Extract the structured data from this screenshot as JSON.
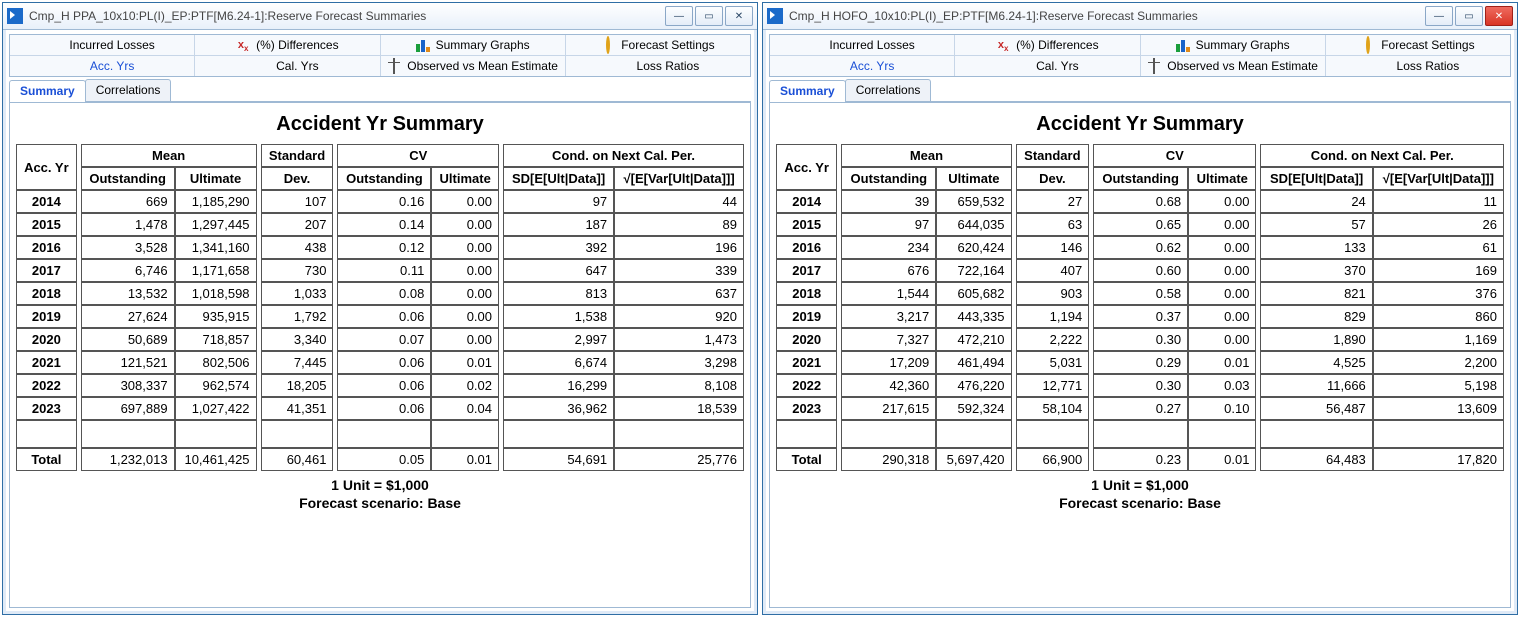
{
  "windows": [
    {
      "title": "Cmp_H PPA_10x10:PL(I)_EP:PTF[M6.24-1]:Reserve Forecast Summaries",
      "close_red": false,
      "summary_title": "Accident Yr Summary",
      "group_headers": {
        "acc": "Acc. Yr",
        "mean": "Mean",
        "std": "Standard",
        "cv": "CV",
        "cond": "Cond. on Next Cal. Per."
      },
      "sub_headers": {
        "out": "Outstanding",
        "ult": "Ultimate",
        "dev": "Dev.",
        "sd": "SD[E[Ult|Data]]",
        "sqrt": "√[E[Var[Ult|Data]]]"
      },
      "rows": [
        {
          "yr": "2014",
          "out": "669",
          "ult": "1,185,290",
          "dev": "107",
          "cvo": "0.16",
          "cvu": "0.00",
          "sd": "97",
          "sq": "44"
        },
        {
          "yr": "2015",
          "out": "1,478",
          "ult": "1,297,445",
          "dev": "207",
          "cvo": "0.14",
          "cvu": "0.00",
          "sd": "187",
          "sq": "89"
        },
        {
          "yr": "2016",
          "out": "3,528",
          "ult": "1,341,160",
          "dev": "438",
          "cvo": "0.12",
          "cvu": "0.00",
          "sd": "392",
          "sq": "196"
        },
        {
          "yr": "2017",
          "out": "6,746",
          "ult": "1,171,658",
          "dev": "730",
          "cvo": "0.11",
          "cvu": "0.00",
          "sd": "647",
          "sq": "339"
        },
        {
          "yr": "2018",
          "out": "13,532",
          "ult": "1,018,598",
          "dev": "1,033",
          "cvo": "0.08",
          "cvu": "0.00",
          "sd": "813",
          "sq": "637"
        },
        {
          "yr": "2019",
          "out": "27,624",
          "ult": "935,915",
          "dev": "1,792",
          "cvo": "0.06",
          "cvu": "0.00",
          "sd": "1,538",
          "sq": "920"
        },
        {
          "yr": "2020",
          "out": "50,689",
          "ult": "718,857",
          "dev": "3,340",
          "cvo": "0.07",
          "cvu": "0.00",
          "sd": "2,997",
          "sq": "1,473"
        },
        {
          "yr": "2021",
          "out": "121,521",
          "ult": "802,506",
          "dev": "7,445",
          "cvo": "0.06",
          "cvu": "0.01",
          "sd": "6,674",
          "sq": "3,298"
        },
        {
          "yr": "2022",
          "out": "308,337",
          "ult": "962,574",
          "dev": "18,205",
          "cvo": "0.06",
          "cvu": "0.02",
          "sd": "16,299",
          "sq": "8,108"
        },
        {
          "yr": "2023",
          "out": "697,889",
          "ult": "1,027,422",
          "dev": "41,351",
          "cvo": "0.06",
          "cvu": "0.04",
          "sd": "36,962",
          "sq": "18,539"
        }
      ],
      "total": {
        "yr": "Total",
        "out": "1,232,013",
        "ult": "10,461,425",
        "dev": "60,461",
        "cvo": "0.05",
        "cvu": "0.01",
        "sd": "54,691",
        "sq": "25,776"
      },
      "unit_line": "1 Unit = $1,000",
      "scenario_line": "Forecast scenario: Base"
    },
    {
      "title": "Cmp_H HOFO_10x10:PL(I)_EP:PTF[M6.24-1]:Reserve Forecast Summaries",
      "close_red": true,
      "summary_title": "Accident Yr Summary",
      "group_headers": {
        "acc": "Acc. Yr",
        "mean": "Mean",
        "std": "Standard",
        "cv": "CV",
        "cond": "Cond. on Next Cal. Per."
      },
      "sub_headers": {
        "out": "Outstanding",
        "ult": "Ultimate",
        "dev": "Dev.",
        "sd": "SD[E[Ult|Data]]",
        "sqrt": "√[E[Var[Ult|Data]]]"
      },
      "rows": [
        {
          "yr": "2014",
          "out": "39",
          "ult": "659,532",
          "dev": "27",
          "cvo": "0.68",
          "cvu": "0.00",
          "sd": "24",
          "sq": "11"
        },
        {
          "yr": "2015",
          "out": "97",
          "ult": "644,035",
          "dev": "63",
          "cvo": "0.65",
          "cvu": "0.00",
          "sd": "57",
          "sq": "26"
        },
        {
          "yr": "2016",
          "out": "234",
          "ult": "620,424",
          "dev": "146",
          "cvo": "0.62",
          "cvu": "0.00",
          "sd": "133",
          "sq": "61"
        },
        {
          "yr": "2017",
          "out": "676",
          "ult": "722,164",
          "dev": "407",
          "cvo": "0.60",
          "cvu": "0.00",
          "sd": "370",
          "sq": "169"
        },
        {
          "yr": "2018",
          "out": "1,544",
          "ult": "605,682",
          "dev": "903",
          "cvo": "0.58",
          "cvu": "0.00",
          "sd": "821",
          "sq": "376"
        },
        {
          "yr": "2019",
          "out": "3,217",
          "ult": "443,335",
          "dev": "1,194",
          "cvo": "0.37",
          "cvu": "0.00",
          "sd": "829",
          "sq": "860"
        },
        {
          "yr": "2020",
          "out": "7,327",
          "ult": "472,210",
          "dev": "2,222",
          "cvo": "0.30",
          "cvu": "0.00",
          "sd": "1,890",
          "sq": "1,169"
        },
        {
          "yr": "2021",
          "out": "17,209",
          "ult": "461,494",
          "dev": "5,031",
          "cvo": "0.29",
          "cvu": "0.01",
          "sd": "4,525",
          "sq": "2,200"
        },
        {
          "yr": "2022",
          "out": "42,360",
          "ult": "476,220",
          "dev": "12,771",
          "cvo": "0.30",
          "cvu": "0.03",
          "sd": "11,666",
          "sq": "5,198"
        },
        {
          "yr": "2023",
          "out": "217,615",
          "ult": "592,324",
          "dev": "58,104",
          "cvo": "0.27",
          "cvu": "0.10",
          "sd": "56,487",
          "sq": "13,609"
        }
      ],
      "total": {
        "yr": "Total",
        "out": "290,318",
        "ult": "5,697,420",
        "dev": "66,900",
        "cvo": "0.23",
        "cvu": "0.01",
        "sd": "64,483",
        "sq": "17,820"
      },
      "unit_line": "1 Unit = $1,000",
      "scenario_line": "Forecast scenario: Base"
    }
  ],
  "toolbar_rows": [
    [
      {
        "label": "Incurred Losses",
        "icon": "red-bar"
      },
      {
        "label": "(%) Differences",
        "icon": "xx"
      },
      {
        "label": "Summary Graphs",
        "icon": "bars"
      },
      {
        "label": "Forecast Settings",
        "icon": "gear"
      }
    ],
    [
      {
        "label": "Acc. Yrs",
        "icon": "yel-bar",
        "active": true
      },
      {
        "label": "Cal. Yrs",
        "icon": "yel-bar"
      },
      {
        "label": "Observed vs Mean Estimate",
        "icon": "cal"
      },
      {
        "label": "Loss Ratios",
        "icon": "dia"
      }
    ]
  ],
  "tabs": [
    {
      "label": "Summary",
      "active": true
    },
    {
      "label": "Correlations"
    }
  ]
}
